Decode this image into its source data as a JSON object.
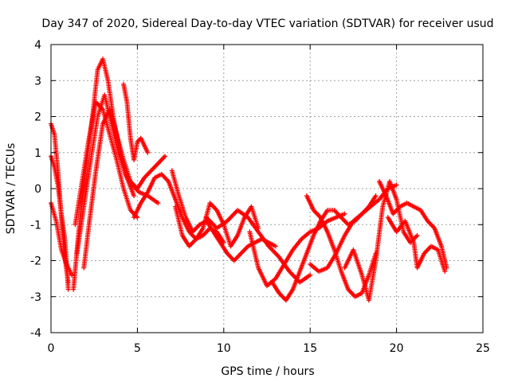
{
  "chart_data": {
    "type": "scatter",
    "title": "Day 347 of 2020, Sidereal Day-to-day VTEC variation (SDTVAR) for receiver usud",
    "xlabel": "GPS time / hours",
    "ylabel": "SDTVAR / TECUs",
    "xlim": [
      0,
      25
    ],
    "ylim": [
      -4,
      4
    ],
    "xticks": [
      0,
      5,
      10,
      15,
      20,
      25
    ],
    "yticks": [
      -4,
      -3,
      -2,
      -1,
      0,
      1,
      2,
      3,
      4
    ],
    "grid": true,
    "marker": "+",
    "color": "#ff0000",
    "series": [
      {
        "name": "arc-1",
        "x": [
          0.0,
          0.2,
          0.4,
          0.6,
          0.8,
          1.0
        ],
        "y": [
          1.8,
          1.5,
          0.5,
          -0.8,
          -1.9,
          -2.6
        ]
      },
      {
        "name": "arc-2",
        "x": [
          0.0,
          0.2,
          0.4,
          0.6,
          0.8,
          1.0
        ],
        "y": [
          0.9,
          0.6,
          0.1,
          -0.7,
          -1.4,
          -2.8
        ]
      },
      {
        "name": "arc-3",
        "x": [
          0.0,
          0.3,
          0.6,
          0.9,
          1.2
        ],
        "y": [
          -0.4,
          -0.9,
          -1.7,
          -2.1,
          -2.4
        ]
      },
      {
        "name": "arc-4",
        "x": [
          1.3,
          1.6,
          2.0,
          2.4,
          2.7,
          3.0,
          3.3,
          3.6,
          4.0,
          4.4,
          4.8
        ],
        "y": [
          -2.8,
          -1.2,
          0.5,
          2.0,
          3.3,
          3.6,
          3.0,
          2.0,
          1.0,
          0.3,
          -0.2
        ]
      },
      {
        "name": "arc-5",
        "x": [
          1.4,
          1.8,
          2.2,
          2.6,
          3.0,
          3.4,
          3.8,
          4.2,
          4.6,
          5.0
        ],
        "y": [
          -1.0,
          0.2,
          1.4,
          2.4,
          2.2,
          1.5,
          0.8,
          0.0,
          -0.6,
          -0.8
        ]
      },
      {
        "name": "arc-6",
        "x": [
          1.5,
          1.9,
          2.3,
          2.7,
          3.1,
          3.5,
          3.9,
          4.3,
          4.7,
          5.1,
          5.6,
          6.2
        ],
        "y": [
          -1.8,
          -0.5,
          0.8,
          2.0,
          2.6,
          1.8,
          1.0,
          0.4,
          0.1,
          -0.1,
          -0.2,
          -0.4
        ]
      },
      {
        "name": "arc-7",
        "x": [
          1.9,
          2.2,
          2.6,
          3.0,
          3.4,
          3.8,
          4.2,
          4.6,
          5.0,
          5.4,
          6.0,
          6.6
        ],
        "y": [
          -2.2,
          -1.0,
          0.5,
          1.8,
          2.2,
          1.5,
          0.8,
          0.2,
          0.0,
          0.3,
          0.6,
          0.9
        ]
      },
      {
        "name": "arc-8",
        "x": [
          4.2,
          4.4,
          4.6,
          4.8,
          5.0,
          5.2,
          5.6
        ],
        "y": [
          2.9,
          2.4,
          1.4,
          0.8,
          1.3,
          1.4,
          1.0
        ]
      },
      {
        "name": "arc-9",
        "x": [
          4.8,
          5.2,
          5.6,
          6.0,
          6.4,
          6.8,
          7.2,
          7.6,
          8.0,
          8.4,
          8.8,
          9.2,
          9.6,
          10.0
        ],
        "y": [
          -0.8,
          -0.4,
          -0.1,
          0.3,
          0.4,
          0.2,
          -0.3,
          -0.8,
          -1.2,
          -1.4,
          -1.3,
          -1.1,
          -1.2,
          -1.5
        ]
      },
      {
        "name": "arc-10",
        "x": [
          7.0,
          7.4,
          7.8,
          8.2,
          8.6,
          9.0,
          9.4,
          9.8,
          10.2,
          10.6,
          11.0,
          11.4,
          11.8,
          12.2,
          12.6,
          13.0
        ],
        "y": [
          0.5,
          -0.2,
          -0.8,
          -1.2,
          -1.0,
          -0.9,
          -1.2,
          -1.5,
          -1.8,
          -2.0,
          -1.8,
          -1.6,
          -1.5,
          -1.4,
          -1.5,
          -1.6
        ]
      },
      {
        "name": "arc-11",
        "x": [
          7.2,
          7.6,
          8.0,
          8.4,
          8.8,
          9.2,
          9.6,
          10.0,
          10.4,
          10.8,
          11.2,
          11.6,
          12.0
        ],
        "y": [
          -0.5,
          -1.3,
          -1.6,
          -1.4,
          -1.1,
          -0.4,
          -0.6,
          -1.0,
          -1.6,
          -1.3,
          -0.8,
          -0.5,
          -1.1
        ]
      },
      {
        "name": "arc-12",
        "x": [
          9.0,
          9.6,
          10.2,
          10.8,
          11.4,
          12.0,
          12.6,
          13.2,
          13.8,
          14.4,
          15.0
        ],
        "y": [
          -0.8,
          -1.1,
          -0.9,
          -0.6,
          -0.8,
          -1.2,
          -1.6,
          -1.9,
          -2.3,
          -2.6,
          -2.4
        ]
      },
      {
        "name": "arc-13",
        "x": [
          11.5,
          12.0,
          12.5,
          13.0,
          13.5,
          14.0,
          14.5,
          15.0,
          15.5,
          16.0,
          16.5,
          17.0
        ],
        "y": [
          -1.2,
          -2.2,
          -2.7,
          -2.5,
          -2.1,
          -1.7,
          -1.4,
          -1.2,
          -1.1,
          -0.9,
          -0.8,
          -0.7
        ]
      },
      {
        "name": "arc-14",
        "x": [
          12.8,
          13.2,
          13.6,
          14.0,
          14.4,
          14.8,
          15.2,
          15.6,
          16.0,
          16.4,
          16.8,
          17.2,
          17.6,
          18.0,
          18.4,
          18.8
        ],
        "y": [
          -2.6,
          -2.9,
          -3.1,
          -2.8,
          -2.3,
          -1.8,
          -1.3,
          -0.9,
          -0.6,
          -0.6,
          -0.8,
          -1.0,
          -0.9,
          -0.7,
          -0.5,
          -0.2
        ]
      },
      {
        "name": "arc-15",
        "x": [
          14.8,
          15.2,
          15.6,
          16.0,
          16.4,
          16.8,
          17.2,
          17.6,
          18.0,
          18.4,
          18.8
        ],
        "y": [
          -0.2,
          -0.6,
          -0.8,
          -1.2,
          -1.7,
          -2.3,
          -2.8,
          -3.0,
          -2.9,
          -2.4,
          -1.8
        ]
      },
      {
        "name": "arc-16",
        "x": [
          15.0,
          15.5,
          16.0,
          16.5,
          17.0,
          17.5,
          18.0,
          18.5,
          19.0,
          19.5,
          20.0
        ],
        "y": [
          -2.1,
          -2.3,
          -2.2,
          -1.8,
          -1.3,
          -0.9,
          -0.7,
          -0.5,
          -0.3,
          0.0,
          0.1
        ]
      },
      {
        "name": "arc-17",
        "x": [
          17.0,
          17.5,
          18.0,
          18.4,
          18.8,
          19.2,
          19.6,
          20.0,
          20.4,
          20.8,
          21.2
        ],
        "y": [
          -2.2,
          -1.7,
          -2.4,
          -3.1,
          -2.0,
          -0.5,
          0.2,
          -0.3,
          -1.2,
          -1.5,
          -1.3
        ]
      },
      {
        "name": "arc-18",
        "x": [
          19.0,
          19.4,
          19.8,
          20.2,
          20.6,
          21.0,
          21.4,
          21.8,
          22.2,
          22.6,
          22.9
        ],
        "y": [
          0.2,
          -0.2,
          -0.7,
          -0.5,
          -0.4,
          -0.5,
          -0.6,
          -0.9,
          -1.1,
          -1.6,
          -2.2
        ]
      },
      {
        "name": "arc-19",
        "x": [
          19.5,
          20.0,
          20.5,
          21.0,
          21.2,
          21.6,
          22.0,
          22.4,
          22.8
        ],
        "y": [
          -0.8,
          -1.2,
          -0.9,
          -1.5,
          -2.2,
          -1.8,
          -1.6,
          -1.7,
          -2.3
        ]
      }
    ]
  }
}
